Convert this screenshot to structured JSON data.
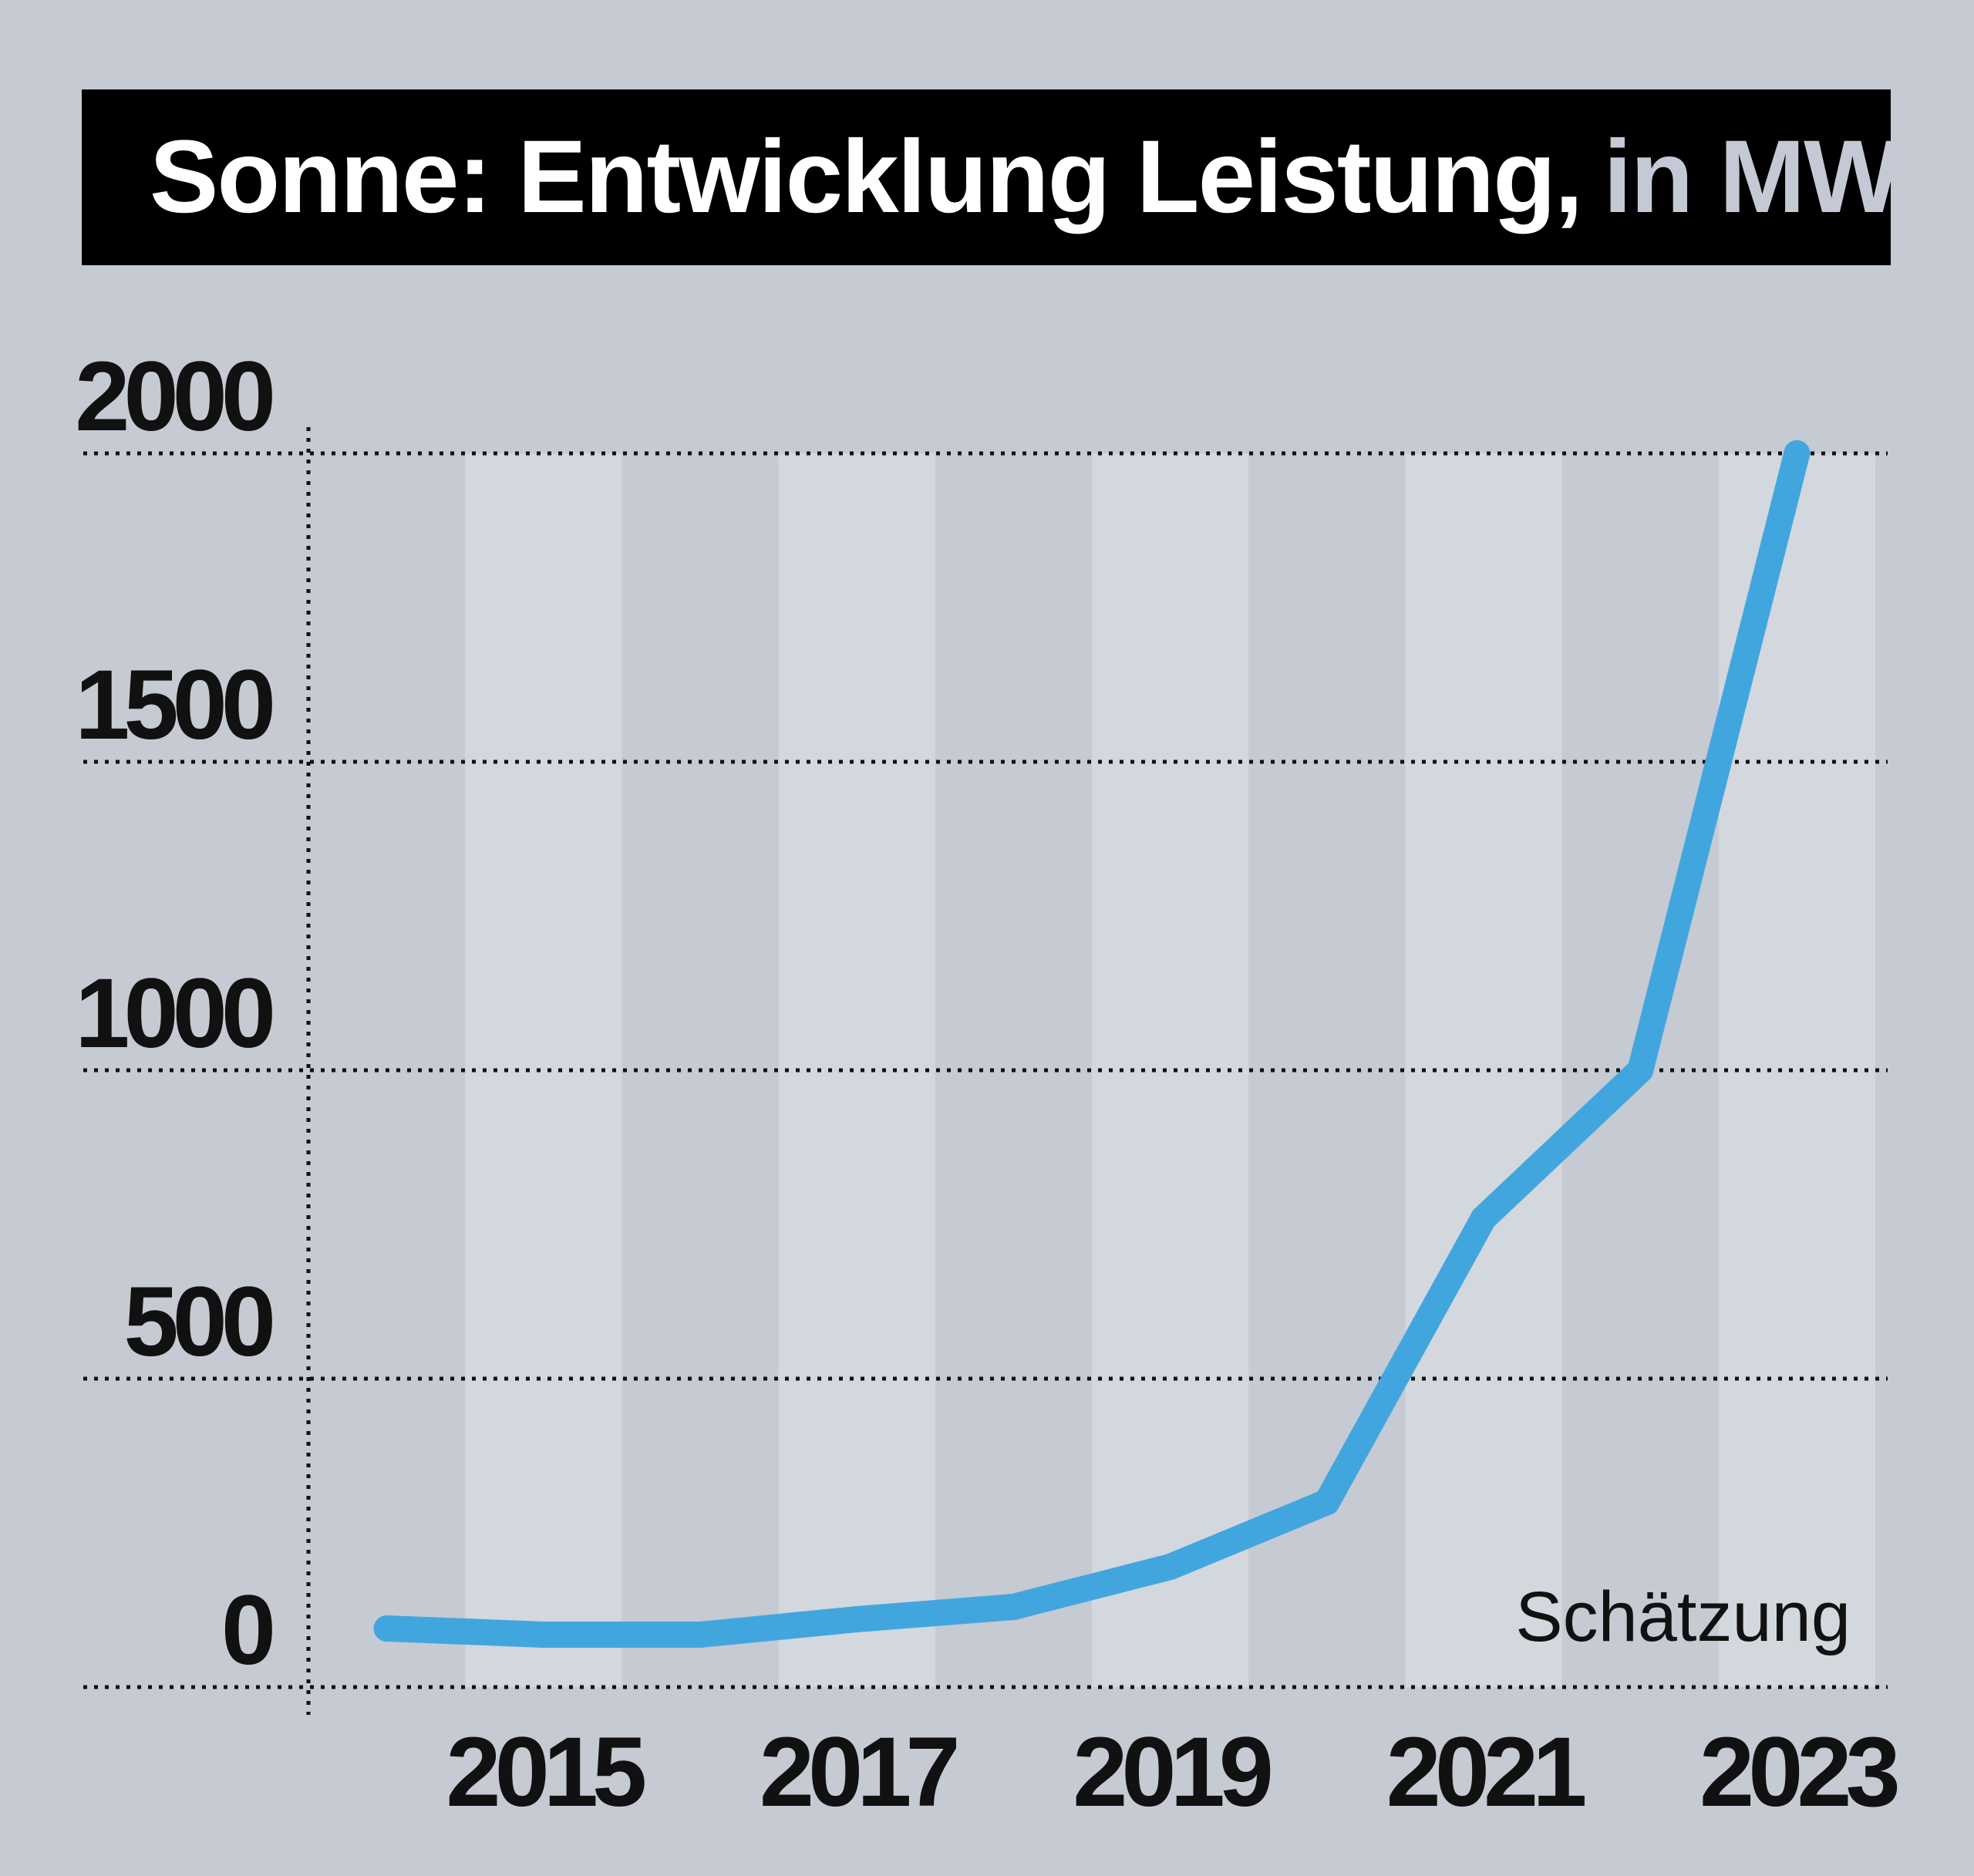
{
  "chart_data": {
    "type": "line",
    "title": "Sonne: Entwicklung Leistung,",
    "title_unit": "in MW",
    "x": [
      2014,
      2015,
      2016,
      2017,
      2018,
      2019,
      2020,
      2021,
      2022,
      2023
    ],
    "series": [
      {
        "values": [
          95,
          85,
          85,
          110,
          130,
          195,
          300,
          760,
          1000,
          2000
        ],
        "color": "#42a6de"
      }
    ],
    "x_tick_labels": [
      "2015",
      "2017",
      "2019",
      "2021",
      "2023"
    ],
    "y_tick_labels": [
      "0",
      "500",
      "1000",
      "1500",
      "2000"
    ],
    "y_ticks": [
      0,
      500,
      1000,
      1500,
      2000
    ],
    "ylim": [
      0,
      2000
    ],
    "xlim": [
      2013.5,
      2023.5
    ],
    "annotation": "Schätzung",
    "grid": true,
    "colors": {
      "background": "#c5cad3",
      "stripe_light": "#d3d7de",
      "stripe_dark": "#c5cad3",
      "title_bar": "#000000",
      "title_text": "#ffffff",
      "title_unit": "#c5c9d6",
      "line": "#42a6de"
    }
  }
}
